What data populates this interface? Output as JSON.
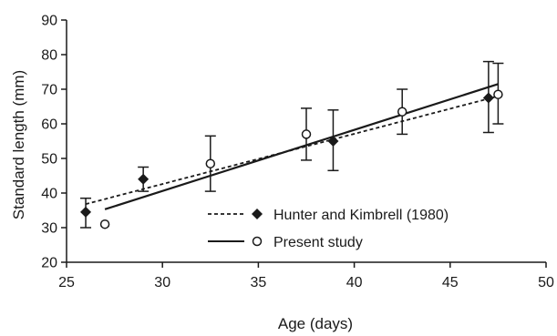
{
  "chart_data": {
    "type": "scatter",
    "title": "",
    "xlabel": "Age (days)",
    "ylabel": "Standard length (mm)",
    "xlim": [
      25,
      50
    ],
    "ylim": [
      20,
      90
    ],
    "xticks": [
      25,
      30,
      35,
      40,
      45,
      50
    ],
    "yticks": [
      20,
      30,
      40,
      50,
      60,
      70,
      80,
      90
    ],
    "grid": false,
    "legend_position": "lower-right",
    "series": [
      {
        "name": "Hunter and Kimbrell (1980)",
        "marker": "filled-diamond",
        "line_style": "dashed",
        "color": "#1a1a1a",
        "points": [
          {
            "x": 26,
            "y": 34.5,
            "err_low": 30,
            "err_high": 38.5
          },
          {
            "x": 29,
            "y": 44,
            "err_low": 40.5,
            "err_high": 47.5
          },
          {
            "x": 38.9,
            "y": 55,
            "err_low": 46.5,
            "err_high": 64
          },
          {
            "x": 47,
            "y": 67.5,
            "err_low": 57.5,
            "err_high": 78
          }
        ],
        "fit_line": [
          {
            "x": 26,
            "y": 36.8
          },
          {
            "x": 47.5,
            "y": 68
          }
        ]
      },
      {
        "name": "Present study",
        "marker": "open-circle",
        "line_style": "solid",
        "color": "#1a1a1a",
        "points": [
          {
            "x": 27,
            "y": 31
          },
          {
            "x": 32.5,
            "y": 48.5,
            "err_low": 40.5,
            "err_high": 56.5
          },
          {
            "x": 37.5,
            "y": 57,
            "err_low": 49.5,
            "err_high": 64.5
          },
          {
            "x": 42.5,
            "y": 63.5,
            "err_low": 57,
            "err_high": 70
          },
          {
            "x": 47.5,
            "y": 68.5,
            "err_low": 60,
            "err_high": 77.5
          }
        ],
        "fit_line": [
          {
            "x": 27,
            "y": 35.3
          },
          {
            "x": 47.5,
            "y": 71.5
          }
        ]
      }
    ]
  }
}
